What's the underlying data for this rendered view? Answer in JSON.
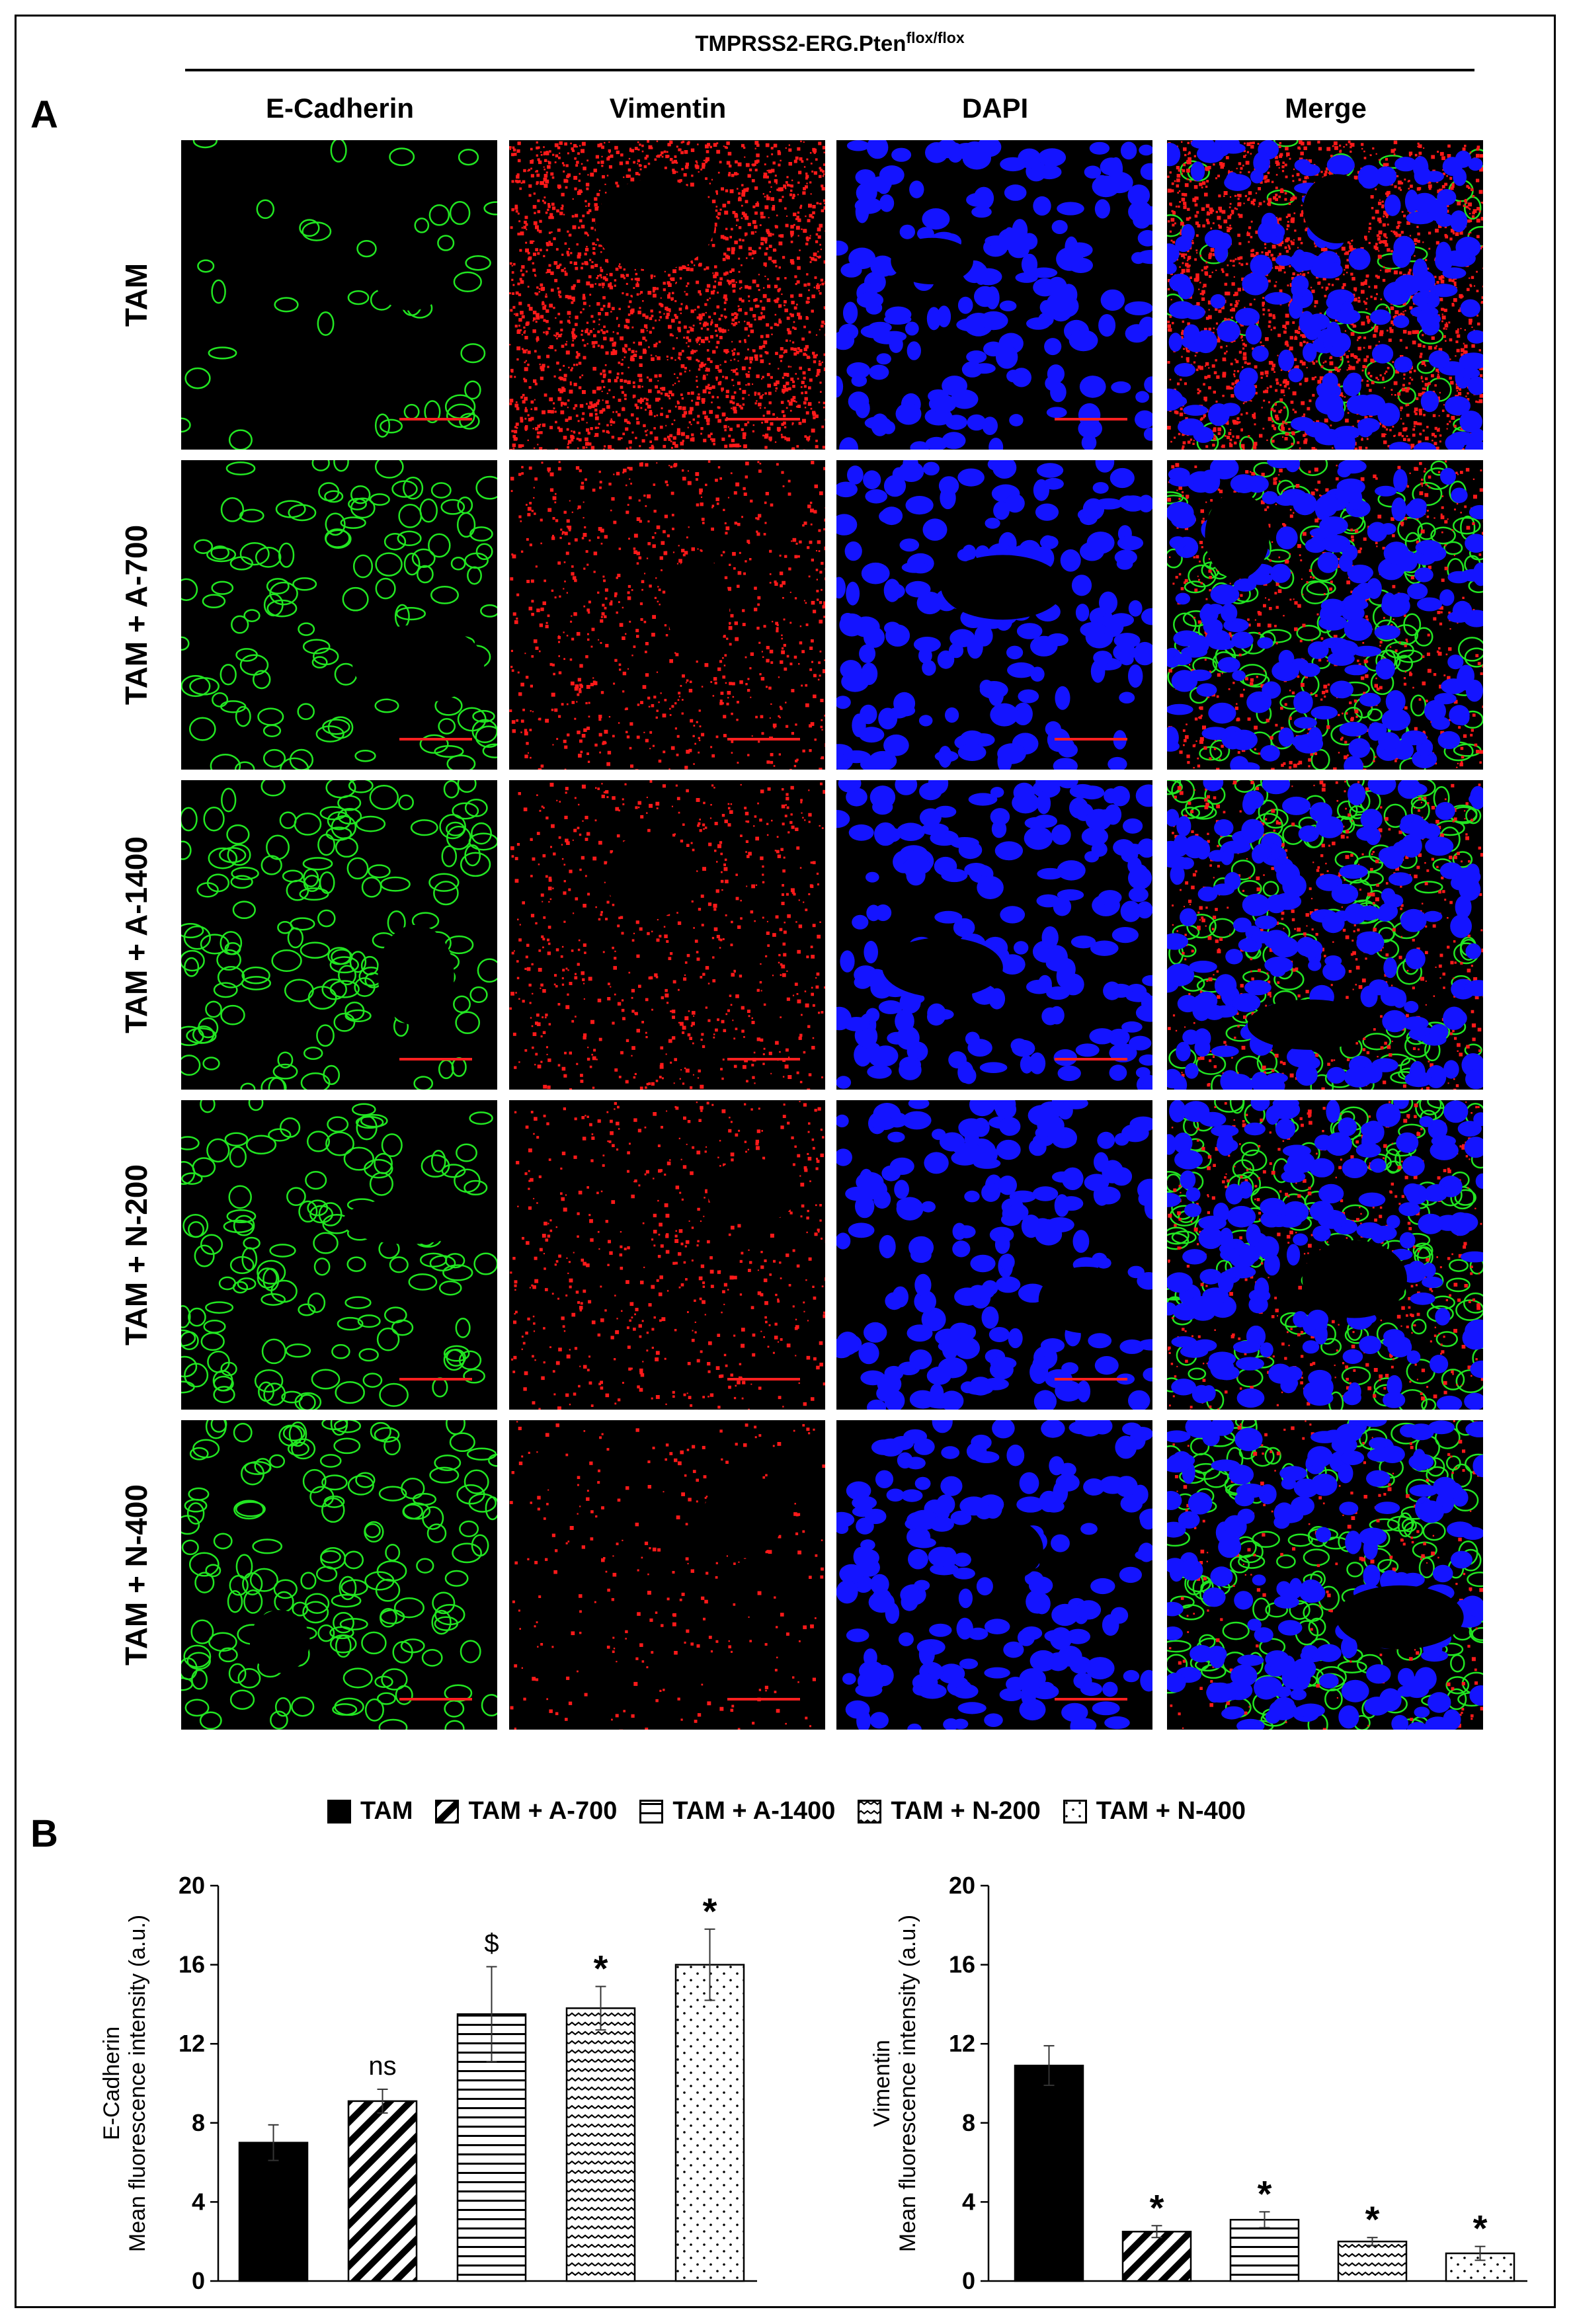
{
  "header": {
    "title_main": "TMPRSS2-ERG.Pten",
    "title_sup": "flox/flox"
  },
  "panel_a": {
    "letter": "A",
    "columns": [
      "E-Cadherin",
      "Vimentin",
      "DAPI",
      "Merge"
    ],
    "rows": [
      "TAM",
      "TAM + A-700",
      "TAM + A-1400",
      "TAM + N-200",
      "TAM + N-400"
    ],
    "channel_colors": {
      "ecad": "#22e622",
      "vim": "#ff1a1a",
      "dapi": "#1414ff",
      "scalebar": "#ff2020"
    }
  },
  "panel_b": {
    "letter": "B",
    "legend": [
      {
        "label": "TAM",
        "pattern": "solid"
      },
      {
        "label": "TAM + A-700",
        "pattern": "diagonal"
      },
      {
        "label": "TAM + A-1400",
        "pattern": "horizontal"
      },
      {
        "label": "TAM + N-200",
        "pattern": "wave"
      },
      {
        "label": "TAM + N-400",
        "pattern": "dots"
      }
    ]
  },
  "chart_data": [
    {
      "type": "bar",
      "categories": [
        "TAM",
        "TAM + A-700",
        "TAM + A-1400",
        "TAM + N-200",
        "TAM + N-400"
      ],
      "values": [
        7.0,
        9.1,
        13.5,
        13.8,
        16.0
      ],
      "errors": [
        0.9,
        0.6,
        2.4,
        1.1,
        1.8
      ],
      "significance": [
        "",
        "ns",
        "$",
        "*",
        "*"
      ],
      "ylabel_line1": "E-Cadherin",
      "ylabel_line2": "Mean fluorescence intensity (a.u.)",
      "ylim": [
        0,
        20
      ],
      "yticks": [
        "0",
        "4",
        "8",
        "12",
        "16",
        "20"
      ],
      "grid": false
    },
    {
      "type": "bar",
      "categories": [
        "TAM",
        "TAM + A-700",
        "TAM + A-1400",
        "TAM + N-200",
        "TAM + N-400"
      ],
      "values": [
        10.9,
        2.5,
        3.1,
        2.0,
        1.4
      ],
      "errors": [
        1.0,
        0.3,
        0.4,
        0.2,
        0.35
      ],
      "significance": [
        "",
        "*",
        "*",
        "*",
        "*"
      ],
      "ylabel_line1": "Vimentin",
      "ylabel_line2": "Mean fluorescence intensity (a.u.)",
      "ylim": [
        0,
        20
      ],
      "yticks": [
        "0",
        "4",
        "8",
        "12",
        "16",
        "20"
      ],
      "grid": false
    }
  ]
}
